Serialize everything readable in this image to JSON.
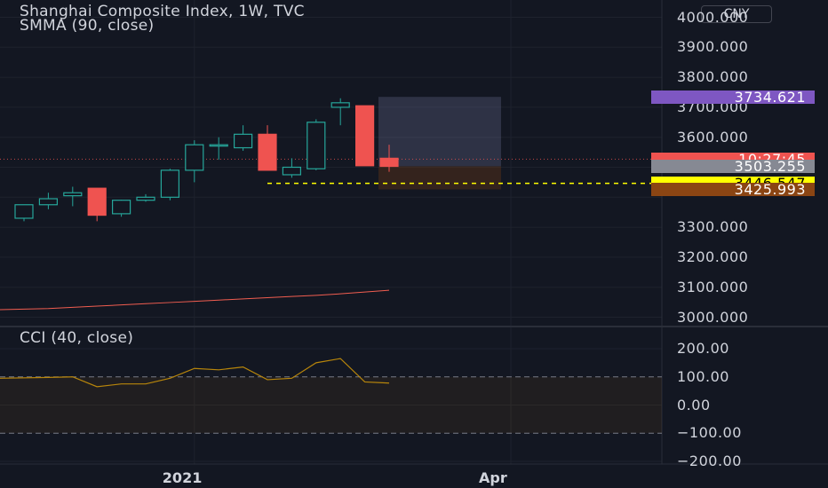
{
  "header": {
    "title": "Shanghai Composite Index, 1W, TVC",
    "indicator": "SMMA (90, close)",
    "currency": "CNY"
  },
  "cci_pane": {
    "title": "CCI (40, close)"
  },
  "colors": {
    "background": "#131722",
    "grid": "#1e222d",
    "up": "#26a69a",
    "down": "#ef5350",
    "smma": "#f05d50",
    "cci_line": "#b8860b",
    "badge_purple": "#7e57c2",
    "badge_red": "#ef5350",
    "badge_gray": "#868993",
    "badge_yellow": "#ffff00",
    "badge_brown": "#8b4513"
  },
  "price_axis": {
    "ticks": [
      "3000.000",
      "3100.000",
      "3200.000",
      "3300.000",
      "3600.000",
      "3700.000",
      "3800.000",
      "3900.000",
      "4000.000"
    ]
  },
  "cci_axis": {
    "ticks": [
      "200.00",
      "100.00",
      "0.00",
      "−100.00",
      "−200.00"
    ]
  },
  "badges": [
    {
      "value": 3734.621,
      "label": "3734.621",
      "bg": "#7e57c2",
      "fg": "#ffffff"
    },
    {
      "value": 3527.0,
      "label": "10:27:45",
      "bg": "#ef5350",
      "fg": "#ffffff"
    },
    {
      "value": 3503.255,
      "label": "3503.255",
      "bg": "#868993",
      "fg": "#ffffff"
    },
    {
      "value": 3446.547,
      "label": "3446.547",
      "bg": "#ffff00",
      "fg": "#000000"
    },
    {
      "value": 3425.993,
      "label": "3425.993",
      "bg": "#8b4513",
      "fg": "#ffffff"
    }
  ],
  "x_axis": {
    "ticks": [
      {
        "label": "2021",
        "index": 7
      },
      {
        "label": "Apr",
        "index": 20
      }
    ]
  },
  "chart_data": {
    "type": "candlestick",
    "title": "Shanghai Composite Index, 1W, TVC",
    "ylim": [
      3000,
      4000
    ],
    "candles": [
      {
        "open": 3330,
        "high": 3375,
        "low": 3320,
        "close": 3375
      },
      {
        "open": 3375,
        "high": 3415,
        "low": 3360,
        "close": 3395
      },
      {
        "open": 3405,
        "high": 3435,
        "low": 3370,
        "close": 3415
      },
      {
        "open": 3430,
        "high": 3430,
        "low": 3320,
        "close": 3340
      },
      {
        "open": 3345,
        "high": 3392,
        "low": 3335,
        "close": 3390
      },
      {
        "open": 3390,
        "high": 3410,
        "low": 3385,
        "close": 3400
      },
      {
        "open": 3400,
        "high": 3495,
        "low": 3390,
        "close": 3490
      },
      {
        "open": 3490,
        "high": 3590,
        "low": 3450,
        "close": 3575
      },
      {
        "open": 3575,
        "high": 3600,
        "low": 3525,
        "close": 3575
      },
      {
        "open": 3565,
        "high": 3640,
        "low": 3555,
        "close": 3610
      },
      {
        "open": 3610,
        "high": 3640,
        "low": 3495,
        "close": 3490
      },
      {
        "open": 3475,
        "high": 3530,
        "low": 3465,
        "close": 3500
      },
      {
        "open": 3495,
        "high": 3660,
        "low": 3490,
        "close": 3650
      },
      {
        "open": 3700,
        "high": 3730,
        "low": 3640,
        "close": 3715
      },
      {
        "open": 3705,
        "high": 3705,
        "low": 3505,
        "close": 3505
      },
      {
        "open": 3530,
        "high": 3575,
        "low": 3485,
        "close": 3503
      }
    ],
    "smma": [
      3025,
      3029,
      3033,
      3037,
      3041,
      3045,
      3049,
      3053,
      3057,
      3061,
      3065,
      3069,
      3073,
      3078,
      3084,
      3090
    ],
    "cci": [
      95,
      98,
      100,
      65,
      75,
      75,
      95,
      130,
      125,
      135,
      90,
      95,
      150,
      165,
      82,
      78
    ],
    "cci_ylim": [
      -200,
      200
    ],
    "cci_bands": [
      100,
      -100
    ],
    "position_tool": {
      "entry": 3503.255,
      "target": 3734.621,
      "stop": 3425.993
    },
    "dashed_line": 3446.547
  }
}
